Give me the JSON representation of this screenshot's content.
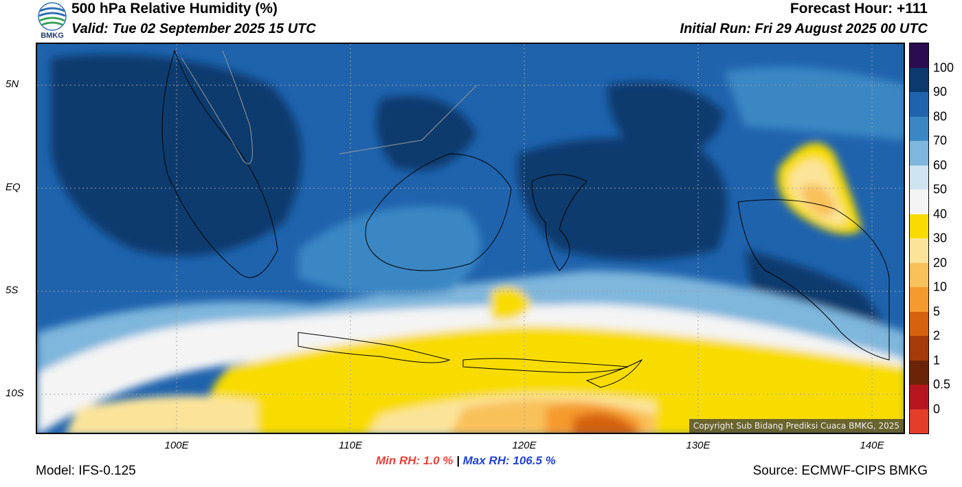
{
  "header": {
    "title": "500 hPa Relative Humidity (%)",
    "valid": "Valid: Tue 02 September 2025 15 UTC",
    "forecast_hour": "Forecast Hour: +111",
    "initial_run": "Initial Run: Fri 29 August 2025 00 UTC",
    "logo_text": "BMKG"
  },
  "map": {
    "copyright": "Copyright Sub Bidang Prediksi Cuaca BMKG, 2025",
    "lat_ticks": [
      "5N",
      "EQ",
      "5S",
      "10S"
    ],
    "lon_ticks": [
      "100E",
      "110E",
      "120E",
      "130E",
      "140E"
    ]
  },
  "stats": {
    "min_label": "Min RH:   1.0 %",
    "separator": "|",
    "max_label": "Max RH: 106.5 %"
  },
  "footer": {
    "model": "Model: IFS-0.125",
    "source": "Source: ECMWF-CIPS BMKG"
  },
  "colorbar": {
    "labels": [
      "100",
      "90",
      "80",
      "70",
      "60",
      "50",
      "40",
      "30",
      "20",
      "10",
      "5",
      "2",
      "1",
      "0.5",
      "0"
    ],
    "colors": [
      "#2b0d4f",
      "#0c3a6e",
      "#1f63ad",
      "#3b87c4",
      "#7eb6dc",
      "#cfe4f1",
      "#f4f4f4",
      "#f8dc00",
      "#fbe49a",
      "#f9c15a",
      "#f59a2e",
      "#d4620e",
      "#a53a0a",
      "#6a2508",
      "#b51620",
      "#e43e2b"
    ]
  }
}
